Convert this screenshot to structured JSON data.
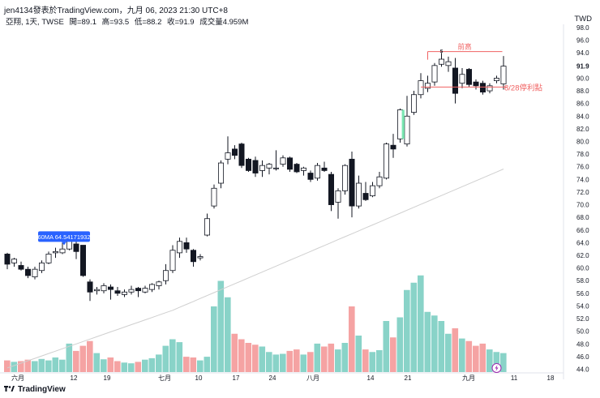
{
  "header": {
    "attribution": "jen4134發表於TradingView.com，九月 06, 2023 21:30 UTC+8",
    "symbol_line": {
      "symbol": "亞翔, 1天, TWSE",
      "open": "開=89.1",
      "high": "高=93.5",
      "low": "低=88.2",
      "close": "收=91.9",
      "volume": "成交量4.959M"
    },
    "currency": "TWD"
  },
  "footer": {
    "brand": "TradingView",
    "logo_icon": "tradingview-logo-icon"
  },
  "colors": {
    "up": "#131722",
    "down": "#131722",
    "vol_up": "#89d3c8",
    "vol_down": "#f5a3a3",
    "ma": "#cfcfcf",
    "annotation": "#f06262",
    "ma_label_bg": "#2962ff"
  },
  "chart_data": {
    "type": "candlestick",
    "price_axis": {
      "min": 44,
      "max": 98,
      "step": 2,
      "last_price": "91.9",
      "side": "right"
    },
    "x_ticks": [
      "六月",
      "12",
      "19",
      "七月",
      "10",
      "17",
      "24",
      "八月",
      "14",
      "21",
      "九月",
      "11",
      "18"
    ],
    "ma_label": "60MA 64.54171932",
    "annotations": {
      "resistance_label": "前高",
      "resistance_price": 94.2,
      "stop_label": "8/28停利點",
      "stop_price": 88.6,
      "s_marker": "s",
      "event_icon": "lightning-icon"
    },
    "candles": [
      {
        "o": 62.2,
        "h": 62.4,
        "l": 59.8,
        "c": 60.6,
        "v": 0.32
      },
      {
        "o": 60.8,
        "h": 61.6,
        "l": 60.2,
        "c": 61.4,
        "v": 0.28
      },
      {
        "o": 60.4,
        "h": 61.0,
        "l": 59.6,
        "c": 59.8,
        "v": 0.3
      },
      {
        "o": 59.8,
        "h": 60.2,
        "l": 58.4,
        "c": 58.8,
        "v": 0.34
      },
      {
        "o": 58.6,
        "h": 60.2,
        "l": 58.2,
        "c": 59.8,
        "v": 0.3
      },
      {
        "o": 59.6,
        "h": 61.2,
        "l": 59.2,
        "c": 60.8,
        "v": 0.36
      },
      {
        "o": 60.8,
        "h": 62.6,
        "l": 60.6,
        "c": 62.2,
        "v": 0.32
      },
      {
        "o": 62.4,
        "h": 63.2,
        "l": 61.6,
        "c": 62.6,
        "v": 0.4
      },
      {
        "o": 62.4,
        "h": 64.0,
        "l": 62.2,
        "c": 63.0,
        "v": 0.34
      },
      {
        "o": 63.0,
        "h": 64.8,
        "l": 62.8,
        "c": 64.4,
        "v": 0.78
      },
      {
        "o": 63.8,
        "h": 64.4,
        "l": 61.4,
        "c": 62.6,
        "v": 0.58
      },
      {
        "o": 63.6,
        "h": 63.6,
        "l": 58.6,
        "c": 58.8,
        "v": 0.72
      },
      {
        "o": 57.8,
        "h": 58.2,
        "l": 54.8,
        "c": 56.2,
        "v": 0.85
      },
      {
        "o": 56.4,
        "h": 57.0,
        "l": 55.8,
        "c": 56.6,
        "v": 0.52
      },
      {
        "o": 56.4,
        "h": 57.6,
        "l": 56.0,
        "c": 57.2,
        "v": 0.35
      },
      {
        "o": 57.0,
        "h": 57.4,
        "l": 55.0,
        "c": 56.6,
        "v": 0.4
      },
      {
        "o": 56.4,
        "h": 57.0,
        "l": 55.6,
        "c": 56.0,
        "v": 0.3
      },
      {
        "o": 55.8,
        "h": 56.6,
        "l": 55.4,
        "c": 56.2,
        "v": 0.26
      },
      {
        "o": 56.2,
        "h": 57.2,
        "l": 55.8,
        "c": 56.6,
        "v": 0.24
      },
      {
        "o": 56.8,
        "h": 57.0,
        "l": 55.4,
        "c": 56.4,
        "v": 0.28
      },
      {
        "o": 56.2,
        "h": 57.2,
        "l": 56.0,
        "c": 56.8,
        "v": 0.34
      },
      {
        "o": 56.6,
        "h": 57.6,
        "l": 56.2,
        "c": 57.4,
        "v": 0.38
      },
      {
        "o": 57.2,
        "h": 58.0,
        "l": 56.6,
        "c": 57.8,
        "v": 0.48
      },
      {
        "o": 58.0,
        "h": 60.6,
        "l": 57.4,
        "c": 59.6,
        "v": 0.72
      },
      {
        "o": 59.6,
        "h": 63.6,
        "l": 59.2,
        "c": 62.8,
        "v": 0.9
      },
      {
        "o": 62.4,
        "h": 64.8,
        "l": 61.6,
        "c": 64.2,
        "v": 0.82
      },
      {
        "o": 64.0,
        "h": 64.8,
        "l": 62.4,
        "c": 63.0,
        "v": 0.42
      },
      {
        "o": 62.8,
        "h": 63.0,
        "l": 60.2,
        "c": 61.0,
        "v": 0.4
      },
      {
        "o": 61.6,
        "h": 62.2,
        "l": 61.2,
        "c": 61.8,
        "v": 0.32
      },
      {
        "o": 65.2,
        "h": 68.6,
        "l": 65.0,
        "c": 67.8,
        "v": 0.42
      },
      {
        "o": 69.8,
        "h": 73.2,
        "l": 69.4,
        "c": 72.6,
        "v": 1.8
      },
      {
        "o": 73.4,
        "h": 77.0,
        "l": 72.6,
        "c": 76.6,
        "v": 2.5
      },
      {
        "o": 77.2,
        "h": 80.8,
        "l": 76.4,
        "c": 78.2,
        "v": 2.05
      },
      {
        "o": 78.8,
        "h": 79.4,
        "l": 77.2,
        "c": 77.8,
        "v": 1.05
      },
      {
        "o": 79.6,
        "h": 79.8,
        "l": 75.8,
        "c": 76.2,
        "v": 0.9
      },
      {
        "o": 77.2,
        "h": 77.4,
        "l": 75.2,
        "c": 75.4,
        "v": 0.8
      },
      {
        "o": 77.0,
        "h": 77.6,
        "l": 74.4,
        "c": 75.0,
        "v": 0.75
      },
      {
        "o": 75.4,
        "h": 77.0,
        "l": 74.4,
        "c": 76.2,
        "v": 0.7
      },
      {
        "o": 75.8,
        "h": 76.6,
        "l": 74.8,
        "c": 76.4,
        "v": 0.55
      },
      {
        "o": 75.8,
        "h": 78.6,
        "l": 75.4,
        "c": 75.8,
        "v": 0.48
      },
      {
        "o": 76.4,
        "h": 77.8,
        "l": 76.0,
        "c": 77.4,
        "v": 0.5
      },
      {
        "o": 77.4,
        "h": 77.6,
        "l": 75.2,
        "c": 75.6,
        "v": 0.58
      },
      {
        "o": 76.4,
        "h": 76.6,
        "l": 75.0,
        "c": 75.2,
        "v": 0.62
      },
      {
        "o": 75.4,
        "h": 76.0,
        "l": 74.6,
        "c": 75.8,
        "v": 0.48
      },
      {
        "o": 75.0,
        "h": 75.4,
        "l": 73.6,
        "c": 74.0,
        "v": 0.55
      },
      {
        "o": 74.2,
        "h": 76.6,
        "l": 73.8,
        "c": 76.2,
        "v": 0.78
      },
      {
        "o": 75.8,
        "h": 76.8,
        "l": 75.2,
        "c": 75.4,
        "v": 0.7
      },
      {
        "o": 74.8,
        "h": 75.2,
        "l": 69.0,
        "c": 70.0,
        "v": 0.78
      },
      {
        "o": 70.4,
        "h": 72.6,
        "l": 67.8,
        "c": 72.2,
        "v": 0.62
      },
      {
        "o": 72.2,
        "h": 76.4,
        "l": 71.6,
        "c": 76.2,
        "v": 0.8
      },
      {
        "o": 77.2,
        "h": 78.4,
        "l": 68.0,
        "c": 69.8,
        "v": 1.8
      },
      {
        "o": 69.8,
        "h": 74.6,
        "l": 69.4,
        "c": 73.4,
        "v": 1.0
      },
      {
        "o": 71.8,
        "h": 73.6,
        "l": 70.6,
        "c": 70.8,
        "v": 0.62
      },
      {
        "o": 71.4,
        "h": 73.6,
        "l": 71.2,
        "c": 73.0,
        "v": 0.55
      },
      {
        "o": 73.0,
        "h": 75.2,
        "l": 72.6,
        "c": 74.4,
        "v": 0.6
      },
      {
        "o": 74.2,
        "h": 79.8,
        "l": 74.0,
        "c": 79.6,
        "v": 1.4
      },
      {
        "o": 79.4,
        "h": 81.2,
        "l": 77.4,
        "c": 78.8,
        "v": 0.95
      },
      {
        "o": 80.4,
        "h": 85.2,
        "l": 79.8,
        "c": 85.0,
        "v": 1.5
      },
      {
        "o": 79.6,
        "h": 87.2,
        "l": 79.2,
        "c": 84.0,
        "v": 2.25
      },
      {
        "o": 84.6,
        "h": 88.0,
        "l": 84.2,
        "c": 87.4,
        "v": 2.45
      },
      {
        "o": 87.4,
        "h": 90.8,
        "l": 86.8,
        "c": 89.6,
        "v": 2.65
      },
      {
        "o": 88.4,
        "h": 90.4,
        "l": 87.8,
        "c": 89.2,
        "v": 1.65
      },
      {
        "o": 89.4,
        "h": 92.4,
        "l": 88.8,
        "c": 92.0,
        "v": 1.55
      },
      {
        "o": 92.2,
        "h": 94.0,
        "l": 91.8,
        "c": 93.0,
        "v": 1.4
      },
      {
        "o": 92.0,
        "h": 93.4,
        "l": 91.0,
        "c": 92.6,
        "v": 1.05
      },
      {
        "o": 91.6,
        "h": 93.2,
        "l": 86.0,
        "c": 87.6,
        "v": 1.2
      },
      {
        "o": 89.2,
        "h": 91.6,
        "l": 88.4,
        "c": 90.6,
        "v": 0.92
      },
      {
        "o": 91.4,
        "h": 91.6,
        "l": 88.6,
        "c": 89.0,
        "v": 0.85
      },
      {
        "o": 89.4,
        "h": 89.8,
        "l": 88.2,
        "c": 88.8,
        "v": 0.72
      },
      {
        "o": 89.2,
        "h": 89.6,
        "l": 87.4,
        "c": 87.8,
        "v": 0.78
      },
      {
        "o": 88.0,
        "h": 89.2,
        "l": 87.6,
        "c": 88.8,
        "v": 0.62
      },
      {
        "o": 89.6,
        "h": 90.4,
        "l": 89.2,
        "c": 90.0,
        "v": 0.55
      },
      {
        "o": 89.1,
        "h": 93.5,
        "l": 88.2,
        "c": 91.9,
        "v": 0.52
      }
    ]
  }
}
